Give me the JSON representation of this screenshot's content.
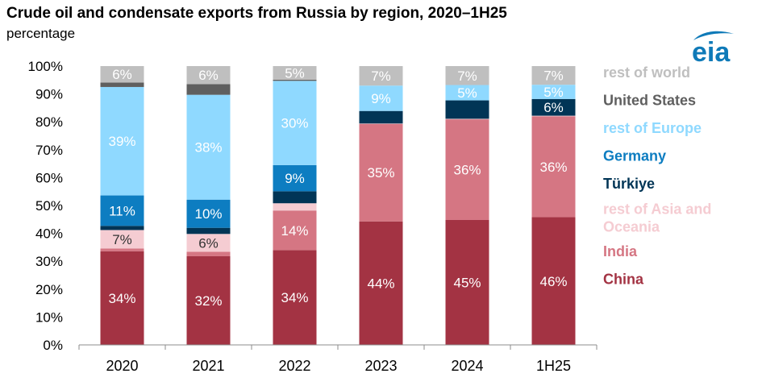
{
  "header": {
    "title": "Crude oil and condensate exports from Russia by region, 2020–1H25",
    "subtitle": "percentage"
  },
  "logo": {
    "text": "eia",
    "icon": "eia-logo-icon",
    "color": "#0f7ab8"
  },
  "chart_data": {
    "type": "bar",
    "stacked": true,
    "title": "Crude oil and condensate exports from Russia by region, 2020–1H25",
    "xlabel": "",
    "ylabel": "percentage",
    "ylim": [
      0,
      100
    ],
    "yticks": [
      "0%",
      "10%",
      "20%",
      "30%",
      "40%",
      "50%",
      "60%",
      "70%",
      "80%",
      "90%",
      "100%"
    ],
    "categories": [
      "2020",
      "2021",
      "2022",
      "2023",
      "2024",
      "1H25"
    ],
    "legend_position": "right",
    "series": [
      {
        "name": "China",
        "color": "#a33343",
        "label_color": "#ffffff",
        "values": [
          33.6,
          31.8,
          34,
          44.3,
          44.8,
          45.8
        ],
        "labels": [
          "34%",
          "32%",
          "34%",
          "44%",
          "45%",
          "46%"
        ]
      },
      {
        "name": "India",
        "color": "#d57683",
        "label_color": "#ffffff",
        "values": [
          1.0,
          1.6,
          14.2,
          35,
          36.1,
          36.2
        ],
        "labels": [
          "",
          "",
          "14%",
          "35%",
          "36%",
          "36%"
        ]
      },
      {
        "name": "rest of Asia and Oceania",
        "color": "#f5ccd2",
        "label_color": "#333333",
        "values": [
          6.6,
          6.4,
          2.6,
          0.1,
          0.2,
          0.2
        ],
        "labels": [
          "7%",
          "6%",
          "",
          "",
          "",
          ""
        ]
      },
      {
        "name": "Türkiye",
        "color": "#013556",
        "label_color": "#ffffff",
        "values": [
          1.5,
          2.2,
          4.3,
          4.5,
          6.6,
          6.0
        ],
        "labels": [
          "",
          "",
          "",
          "",
          "",
          "6%"
        ]
      },
      {
        "name": "Germany",
        "color": "#0d7dc1",
        "label_color": "#ffffff",
        "values": [
          10.9,
          10.1,
          9.4,
          0,
          0,
          0
        ],
        "labels": [
          "11%",
          "10%",
          "9%",
          "",
          "",
          ""
        ]
      },
      {
        "name": "rest of Europe",
        "color": "#8fd9ff",
        "label_color": "#ffffff",
        "values": [
          38.9,
          37.6,
          30.2,
          9.1,
          5.5,
          5.1
        ],
        "labels": [
          "39%",
          "38%",
          "30%",
          "9%",
          "5%",
          "5%"
        ]
      },
      {
        "name": "United States",
        "color": "#5f5f5f",
        "label_color": "#ffffff",
        "values": [
          1.6,
          3.8,
          0.4,
          0,
          0,
          0
        ],
        "labels": [
          "",
          "",
          "",
          "",
          "",
          ""
        ]
      },
      {
        "name": "rest of world",
        "color": "#bfbfbf",
        "label_color": "#ffffff",
        "values": [
          5.9,
          6.5,
          4.9,
          7.0,
          6.8,
          6.7
        ],
        "labels": [
          "6%",
          "6%",
          "5%",
          "7%",
          "7%",
          "7%"
        ]
      }
    ],
    "legend_order": [
      "rest of world",
      "United States",
      "rest of Europe",
      "Germany",
      "Türkiye",
      "rest of Asia and Oceania",
      "India",
      "China"
    ]
  }
}
